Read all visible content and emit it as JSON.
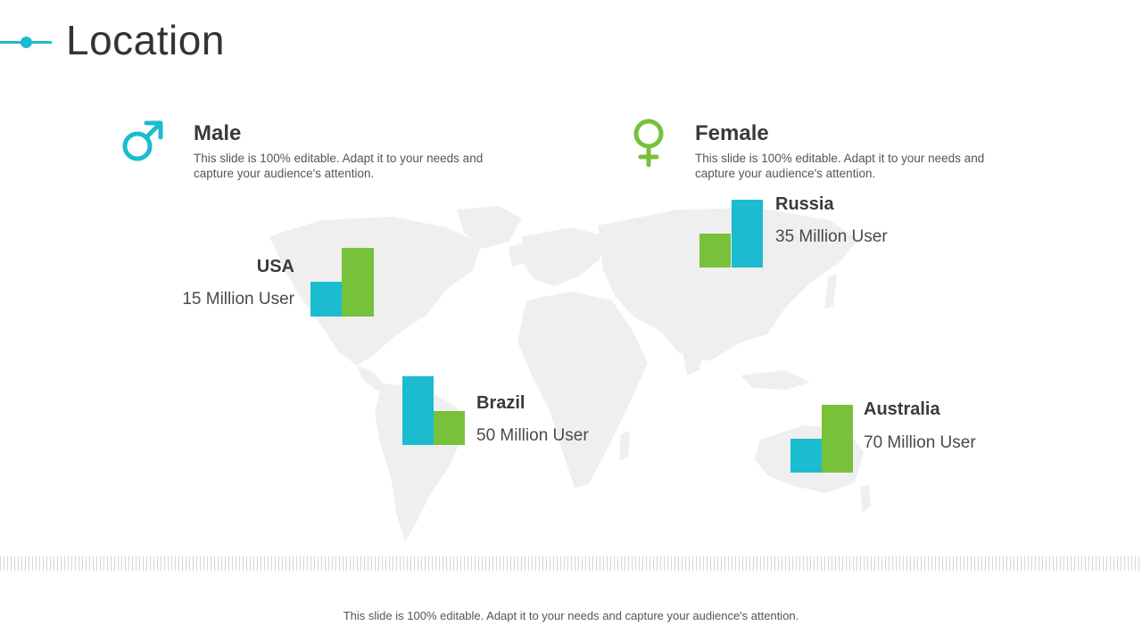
{
  "title": "Location",
  "colors": {
    "accent_blue": "#1bbbd0",
    "accent_green": "#78c13a",
    "map_gray": "#efefef"
  },
  "male": {
    "icon": "male-symbol-icon",
    "title": "Male",
    "description": "This slide is 100% editable. Adapt it to your needs and capture your audience's attention."
  },
  "female": {
    "icon": "female-symbol-icon",
    "title": "Female",
    "description": "This slide is 100% editable. Adapt it to your needs and capture your audience's attention."
  },
  "countries": {
    "usa": {
      "name": "USA",
      "users": "15 Million User"
    },
    "brazil": {
      "name": "Brazil",
      "users": "50 Million User"
    },
    "russia": {
      "name": "Russia",
      "users": "35 Million User"
    },
    "australia": {
      "name": "Australia",
      "users": "70 Million User"
    }
  },
  "footer": "This slide is 100% editable. Adapt it to your needs and capture your audience's attention."
}
